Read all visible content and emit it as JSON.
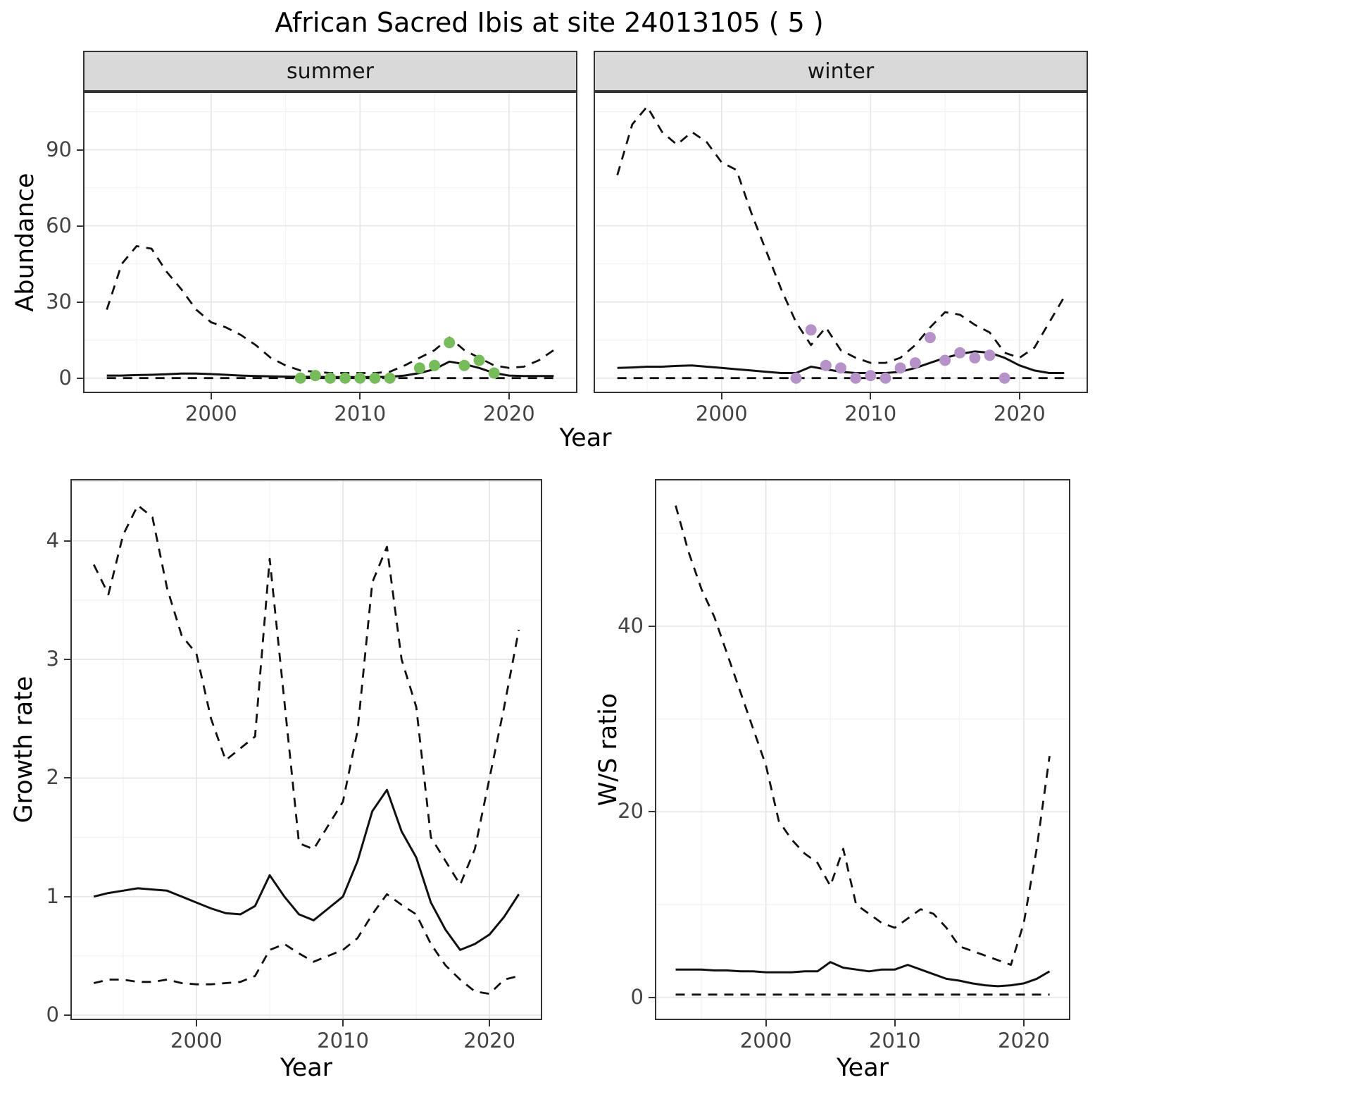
{
  "title": "African Sacred Ibis at site 24013105 ( 5 )",
  "top_row": {
    "ylabel": "Abundance",
    "xlabel": "Year"
  },
  "colors": {
    "line": "#111111",
    "grid_major": "#e6e6e6",
    "grid_minor": "#f2f2f2",
    "strip_bg": "#d9d9d9",
    "panel_border": "#333333",
    "summer_points": "#77bc5a",
    "winter_points": "#b593c8"
  },
  "chart_data": [
    {
      "id": "abundance-summer",
      "type": "line",
      "facet_label": "summer",
      "xlabel": "Year",
      "ylabel": "Abundance",
      "xlim": [
        1991.5,
        2024.5
      ],
      "ylim": [
        -5.35,
        112.35
      ],
      "xticks": [
        2000,
        2010,
        2020
      ],
      "yticks": [
        0,
        30,
        60,
        90
      ],
      "show_ytick_labels": true,
      "x": [
        1993,
        1994,
        1995,
        1996,
        1997,
        1998,
        1999,
        2000,
        2001,
        2002,
        2003,
        2004,
        2005,
        2006,
        2007,
        2008,
        2009,
        2010,
        2011,
        2012,
        2013,
        2014,
        2015,
        2016,
        2017,
        2018,
        2019,
        2020,
        2021,
        2022,
        2023
      ],
      "series": [
        {
          "name": "upper-95ci",
          "style": "dashed",
          "values": [
            27,
            45,
            52,
            51,
            42,
            35,
            27,
            22,
            20,
            17,
            13,
            8,
            5,
            3,
            2.5,
            2,
            2,
            2,
            2,
            2.5,
            5,
            8,
            11,
            16,
            11,
            8,
            5,
            4,
            4.5,
            7,
            11
          ]
        },
        {
          "name": "estimate",
          "style": "solid",
          "values": [
            1,
            1,
            1.2,
            1.3,
            1.5,
            1.8,
            1.8,
            1.6,
            1.3,
            1,
            0.8,
            0.7,
            0.6,
            0.5,
            0.5,
            0.4,
            0.4,
            0.4,
            0.4,
            0.5,
            1,
            2,
            3.5,
            6.5,
            5.5,
            4,
            2,
            1,
            0.8,
            0.8,
            0.8
          ]
        },
        {
          "name": "lower-95ci",
          "style": "dashed",
          "values": [
            0,
            0,
            0,
            0,
            0,
            0,
            0,
            0,
            0,
            0,
            0,
            0,
            0,
            0,
            0,
            0,
            0,
            0,
            0,
            0,
            0,
            0,
            0,
            0,
            0,
            0,
            0,
            0,
            0,
            0,
            0
          ]
        }
      ],
      "points": {
        "name": "observed-summer",
        "color": "#77bc5a",
        "x": [
          2006,
          2007,
          2008,
          2009,
          2010,
          2011,
          2012,
          2014,
          2015,
          2016,
          2017,
          2018,
          2019
        ],
        "y": [
          0,
          1,
          0,
          0,
          0,
          0,
          0,
          4,
          5,
          14,
          5,
          7,
          2
        ]
      }
    },
    {
      "id": "abundance-winter",
      "type": "line",
      "facet_label": "winter",
      "xlabel": "Year",
      "ylabel": "Abundance",
      "xlim": [
        1991.5,
        2024.5
      ],
      "ylim": [
        -5.35,
        112.35
      ],
      "xticks": [
        2000,
        2010,
        2020
      ],
      "yticks": [
        0,
        30,
        60,
        90
      ],
      "show_ytick_labels": false,
      "x": [
        1993,
        1994,
        1995,
        1996,
        1997,
        1998,
        1999,
        2000,
        2001,
        2002,
        2003,
        2004,
        2005,
        2006,
        2007,
        2008,
        2009,
        2010,
        2011,
        2012,
        2013,
        2014,
        2015,
        2016,
        2017,
        2018,
        2019,
        2020,
        2021,
        2022,
        2023
      ],
      "series": [
        {
          "name": "upper-95ci",
          "style": "dashed",
          "values": [
            80,
            100,
            107,
            97,
            92,
            97,
            93,
            85,
            82,
            65,
            50,
            35,
            22,
            13,
            20,
            11,
            8,
            6,
            6,
            8,
            13,
            20,
            26,
            25,
            21,
            18,
            10,
            8,
            12,
            22,
            32
          ]
        },
        {
          "name": "estimate",
          "style": "solid",
          "values": [
            4,
            4.2,
            4.5,
            4.5,
            4.8,
            5,
            4.5,
            4,
            3.5,
            3,
            2.5,
            2,
            2,
            4.5,
            3.5,
            2.5,
            2,
            2,
            2,
            2.5,
            4,
            6,
            8,
            9.5,
            10.5,
            10,
            8,
            5,
            3,
            2,
            2
          ]
        },
        {
          "name": "lower-95ci",
          "style": "dashed",
          "values": [
            0,
            0,
            0,
            0,
            0,
            0,
            0,
            0,
            0,
            0,
            0,
            0,
            0,
            0,
            0,
            0,
            0,
            0,
            0,
            0,
            0,
            0,
            0,
            0,
            0,
            0,
            0,
            0,
            0,
            0,
            0
          ]
        }
      ],
      "points": {
        "name": "observed-winter",
        "color": "#b593c8",
        "x": [
          2005,
          2006,
          2007,
          2008,
          2009,
          2010,
          2011,
          2012,
          2013,
          2014,
          2015,
          2016,
          2017,
          2018,
          2019
        ],
        "y": [
          0,
          19,
          5,
          4,
          0,
          1,
          0,
          4,
          6,
          16,
          7,
          10,
          8,
          9,
          0
        ]
      }
    },
    {
      "id": "growth-rate",
      "type": "line",
      "facet_label": "",
      "xlabel": "Year",
      "ylabel": "Growth rate",
      "xlim": [
        1991.5,
        2023.5
      ],
      "ylim": [
        -0.03,
        4.51
      ],
      "xticks": [
        2000,
        2010,
        2020
      ],
      "yticks": [
        0,
        1,
        2,
        3,
        4
      ],
      "show_ytick_labels": true,
      "x": [
        1993,
        1994,
        1995,
        1996,
        1997,
        1998,
        1999,
        2000,
        2001,
        2002,
        2003,
        2004,
        2005,
        2006,
        2007,
        2008,
        2009,
        2010,
        2011,
        2012,
        2013,
        2014,
        2015,
        2016,
        2017,
        2018,
        2019,
        2020,
        2021,
        2022
      ],
      "series": [
        {
          "name": "upper-95ci",
          "style": "dashed",
          "values": [
            3.8,
            3.55,
            4.05,
            4.3,
            4.2,
            3.6,
            3.2,
            3.05,
            2.5,
            2.15,
            2.25,
            2.35,
            3.85,
            2.65,
            1.45,
            1.4,
            1.6,
            1.8,
            2.4,
            3.65,
            3.95,
            3.0,
            2.6,
            1.5,
            1.3,
            1.1,
            1.4,
            2.0,
            2.6,
            3.25
          ]
        },
        {
          "name": "estimate",
          "style": "solid",
          "values": [
            1.0,
            1.03,
            1.05,
            1.07,
            1.06,
            1.05,
            1.0,
            0.95,
            0.9,
            0.86,
            0.85,
            0.92,
            1.18,
            1.0,
            0.85,
            0.8,
            0.9,
            1.0,
            1.3,
            1.72,
            1.9,
            1.55,
            1.33,
            0.95,
            0.72,
            0.55,
            0.6,
            0.68,
            0.83,
            1.02
          ]
        },
        {
          "name": "lower-95ci",
          "style": "dashed",
          "values": [
            0.27,
            0.3,
            0.3,
            0.28,
            0.28,
            0.3,
            0.27,
            0.26,
            0.26,
            0.27,
            0.28,
            0.33,
            0.55,
            0.6,
            0.52,
            0.45,
            0.5,
            0.55,
            0.65,
            0.85,
            1.02,
            0.93,
            0.85,
            0.6,
            0.42,
            0.3,
            0.2,
            0.18,
            0.3,
            0.33
          ]
        }
      ],
      "points": null
    },
    {
      "id": "ws-ratio",
      "type": "line",
      "facet_label": "",
      "xlabel": "Year",
      "ylabel": "W/S ratio",
      "xlim": [
        1991.5,
        2023.5
      ],
      "ylim": [
        -2.3,
        55.7
      ],
      "xticks": [
        2000,
        2010,
        2020
      ],
      "yticks": [
        0,
        20,
        40
      ],
      "show_ytick_labels": true,
      "x": [
        1993,
        1994,
        1995,
        1996,
        1997,
        1998,
        1999,
        2000,
        2001,
        2002,
        2003,
        2004,
        2005,
        2006,
        2007,
        2008,
        2009,
        2010,
        2011,
        2012,
        2013,
        2014,
        2015,
        2016,
        2017,
        2018,
        2019,
        2020,
        2021,
        2022
      ],
      "series": [
        {
          "name": "upper-95ci",
          "style": "dashed",
          "values": [
            53,
            48,
            44,
            41,
            37,
            33,
            29,
            25,
            19,
            17,
            15.5,
            14.5,
            12,
            16,
            10,
            9,
            8,
            7.5,
            8.5,
            9.5,
            9,
            7.5,
            5.5,
            5,
            4.5,
            4,
            3.5,
            8,
            16,
            26
          ]
        },
        {
          "name": "estimate",
          "style": "solid",
          "values": [
            3,
            3,
            3,
            2.9,
            2.9,
            2.8,
            2.8,
            2.7,
            2.7,
            2.7,
            2.8,
            2.8,
            3.8,
            3.2,
            3,
            2.8,
            3,
            3,
            3.5,
            3,
            2.5,
            2,
            1.8,
            1.5,
            1.3,
            1.2,
            1.3,
            1.5,
            2,
            2.8
          ]
        },
        {
          "name": "lower-95ci",
          "style": "dashed",
          "values": [
            0.3,
            0.3,
            0.3,
            0.3,
            0.3,
            0.3,
            0.3,
            0.3,
            0.3,
            0.3,
            0.3,
            0.3,
            0.3,
            0.3,
            0.3,
            0.3,
            0.3,
            0.3,
            0.3,
            0.3,
            0.3,
            0.3,
            0.3,
            0.3,
            0.3,
            0.3,
            0.3,
            0.3,
            0.3,
            0.3
          ]
        }
      ],
      "points": null
    }
  ]
}
